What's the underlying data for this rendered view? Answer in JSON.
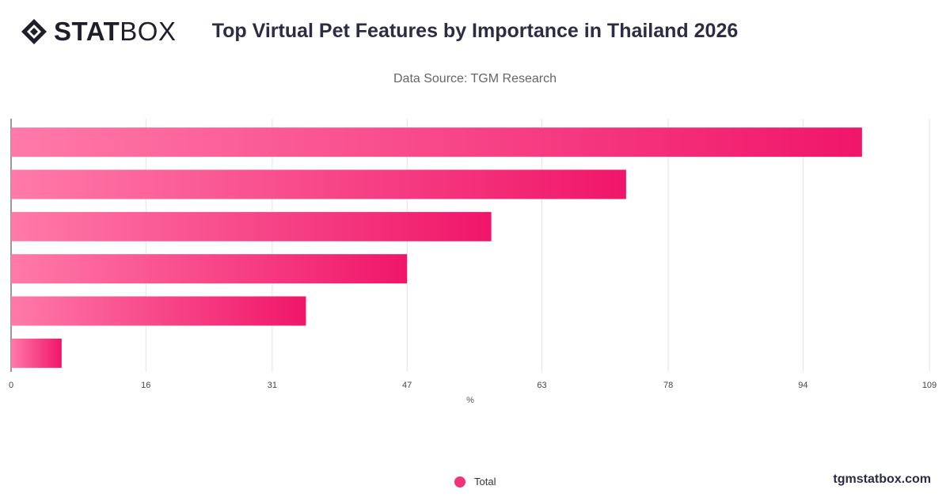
{
  "brand": {
    "logo_stat": "STAT",
    "logo_box": "BOX",
    "credit": "tgmstatbox.com"
  },
  "header": {
    "title": "Top Virtual Pet Features by Importance in Thailand 2026",
    "subtitle": "Data Source: TGM Research"
  },
  "colors": {
    "bar_start": "#ff7aa8",
    "bar_end": "#f0166a",
    "legend_dot": "#f0337a"
  },
  "chart_data": {
    "type": "bar",
    "orientation": "horizontal",
    "series": [
      {
        "name": "Total",
        "values": [
          101,
          73,
          57,
          47,
          35,
          6
        ]
      }
    ],
    "xlabel": "%",
    "xlim": [
      0,
      109
    ],
    "xticks": [
      "0",
      "16",
      "31",
      "47",
      "63",
      "78",
      "94",
      "109"
    ],
    "grid": true,
    "legend": "bottom-center"
  }
}
